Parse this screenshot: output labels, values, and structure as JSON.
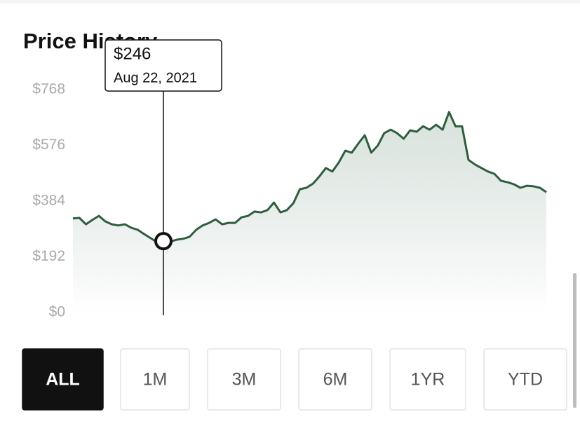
{
  "title": "Price History",
  "chart_data": {
    "type": "line",
    "ylim": [
      0,
      768
    ],
    "yticks": [
      {
        "value": 0,
        "label": "$0"
      },
      {
        "value": 192,
        "label": "$192"
      },
      {
        "value": 384,
        "label": "$384"
      },
      {
        "value": 576,
        "label": "$576"
      },
      {
        "value": 768,
        "label": "$768"
      }
    ],
    "color": "#2e5e3e",
    "values": [
      324,
      326,
      304,
      319,
      333,
      314,
      304,
      300,
      304,
      292,
      285,
      270,
      256,
      242,
      237,
      244,
      251,
      254,
      261,
      285,
      300,
      309,
      321,
      304,
      309,
      309,
      328,
      333,
      348,
      345,
      353,
      379,
      345,
      353,
      377,
      425,
      430,
      444,
      469,
      498,
      486,
      517,
      558,
      551,
      582,
      611,
      551,
      575,
      618,
      630,
      618,
      599,
      628,
      623,
      642,
      630,
      647,
      630,
      691,
      642,
      642,
      526,
      510,
      498,
      486,
      478,
      454,
      449,
      442,
      430,
      437,
      435,
      430,
      415
    ],
    "tooltip": {
      "value": 246,
      "value_label": "$246",
      "date": "Aug 22, 2021"
    }
  },
  "buttons": [
    "ALL",
    "1M",
    "3M",
    "6M",
    "1YR",
    "YTD"
  ]
}
